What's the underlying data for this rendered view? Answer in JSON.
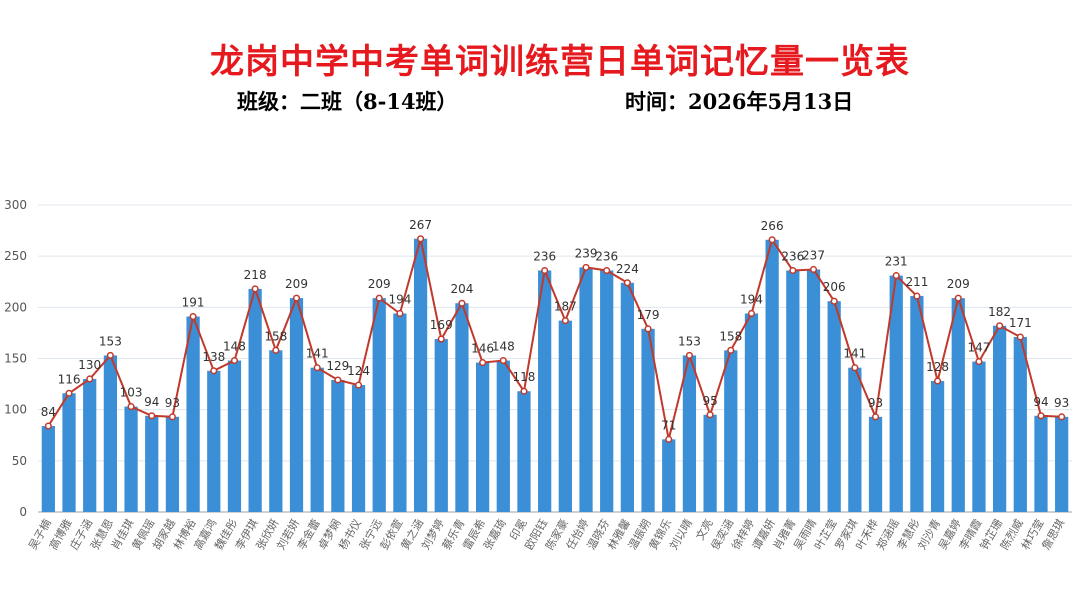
{
  "header": {
    "title": "龙岗中学中考单词训练营日单词记忆量一览表",
    "class_label": "班级：二班（8-14班）",
    "time_label": "时间：2026年5月13日"
  },
  "chart_data": {
    "type": "bar",
    "overlay": "line",
    "ylim": [
      0,
      300
    ],
    "yticks": [
      0,
      50,
      100,
      150,
      200,
      250,
      300
    ],
    "grid": true,
    "bar_color": "#3a8fd6",
    "line_color": "#c0392b",
    "categories": [
      "吴子楠",
      "高博雅",
      "庄子涵",
      "张慧恩",
      "肖佳琪",
      "黄佩瑶",
      "胡家越",
      "林博裕",
      "高嘉鸿",
      "魏佳彤",
      "李伊琪",
      "张欣妍",
      "刘若妍",
      "李金蕾",
      "卓梦娴",
      "杨书仪",
      "张宁远",
      "彭依萱",
      "黄之涵",
      "刘梦婷",
      "蔡乐青",
      "雷辰希",
      "张嘉琦",
      "印冕",
      "欧阳钰",
      "陈家豪",
      "任怡婷",
      "温晓芬",
      "林雅馨",
      "温振朔",
      "黄锦乐",
      "刘以晴",
      "文亮",
      "侯奕涵",
      "徐梓婷",
      "谭嘉妍",
      "肖雅菁",
      "吴雨晴",
      "叶芷莹",
      "罗家琪",
      "叶禾桦",
      "郑涵瑶",
      "李慧彤",
      "刘沙青",
      "吴嘉婷",
      "李晴霞",
      "钟芷珊",
      "陈烈威",
      "林巧莹",
      "詹思琪"
    ],
    "values": [
      84,
      116,
      130,
      153,
      103,
      94,
      93,
      191,
      138,
      148,
      218,
      158,
      209,
      141,
      129,
      124,
      209,
      194,
      267,
      169,
      204,
      146,
      148,
      118,
      236,
      187,
      239,
      236,
      224,
      179,
      71,
      153,
      95,
      158,
      194,
      266,
      236,
      237,
      206,
      141,
      93,
      231,
      211,
      128,
      209,
      147,
      182,
      171,
      94,
      93
    ]
  }
}
